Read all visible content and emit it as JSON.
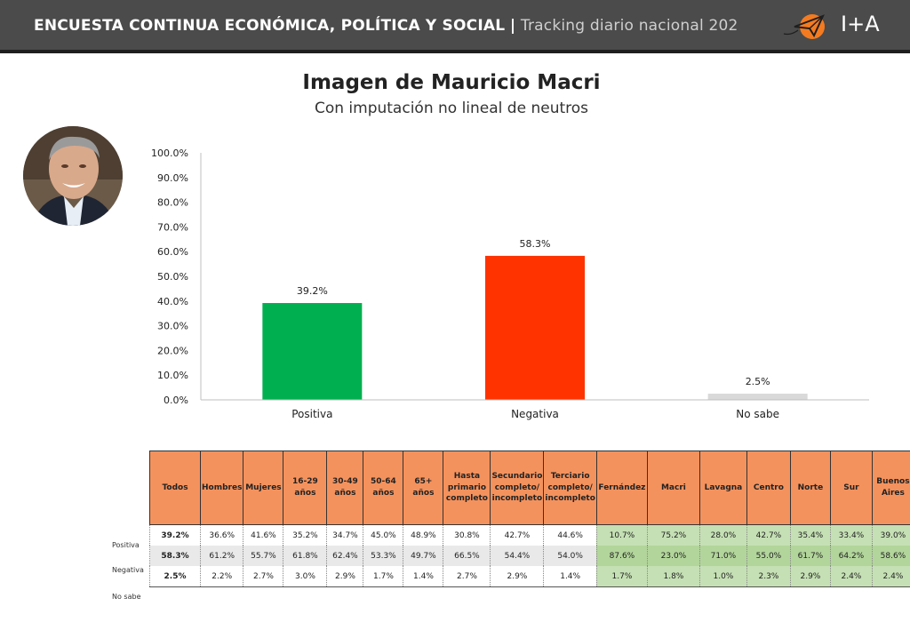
{
  "header": {
    "title": "ENCUESTA CONTINUA ECONÓMICA, POLÍTICA Y SOCIAL",
    "separator": "|",
    "subtitle": "Tracking diario nacional 202",
    "logo_text": "I+A"
  },
  "colors": {
    "header_bg": "#4b4b4b",
    "positiva": "#00b050",
    "negativa": "#ff3300",
    "no_sabe": "#d9d9d9",
    "table_header": "#f4925d",
    "table_green": "#c5e0b4"
  },
  "chart_data": {
    "type": "bar",
    "title": "Imagen de Mauricio Macri",
    "subtitle": "Con imputación no lineal de neutros",
    "categories": [
      "Positiva",
      "Negativa",
      "No sabe"
    ],
    "values": [
      39.2,
      58.3,
      2.5
    ],
    "value_labels": [
      "39.2%",
      "58.3%",
      "2.5%"
    ],
    "bar_colors": [
      "#00b050",
      "#ff3300",
      "#d9d9d9"
    ],
    "ylim": [
      0,
      100
    ],
    "y_ticks": [
      "0.0%",
      "10.0%",
      "20.0%",
      "30.0%",
      "40.0%",
      "50.0%",
      "60.0%",
      "70.0%",
      "80.0%",
      "90.0%",
      "100.0%"
    ],
    "grid": false,
    "legend": "none"
  },
  "table": {
    "columns": [
      [
        "Todos"
      ],
      [
        "Hombres"
      ],
      [
        "Mujeres"
      ],
      [
        "16-29",
        "años"
      ],
      [
        "30-49",
        "años"
      ],
      [
        "50-64",
        "años"
      ],
      [
        "65+ años"
      ],
      [
        "Hasta",
        "primario",
        "completo"
      ],
      [
        "Secundario",
        "completo/",
        "incompleto"
      ],
      [
        "Terciario",
        "completo/",
        "incompleto"
      ],
      [
        "Fernández"
      ],
      [
        "Macri"
      ],
      [
        "Lavagna"
      ],
      [
        "Centro"
      ],
      [
        "Norte"
      ],
      [
        "Sur"
      ],
      [
        "Buenos",
        "Aires"
      ]
    ],
    "rows": [
      {
        "label": "Positiva",
        "values": [
          "39.2%",
          "36.6%",
          "41.6%",
          "35.2%",
          "34.7%",
          "45.0%",
          "48.9%",
          "30.8%",
          "42.7%",
          "44.6%",
          "10.7%",
          "75.2%",
          "28.0%",
          "42.7%",
          "35.4%",
          "33.4%",
          "39.0%"
        ]
      },
      {
        "label": "Negativa",
        "values": [
          "58.3%",
          "61.2%",
          "55.7%",
          "61.8%",
          "62.4%",
          "53.3%",
          "49.7%",
          "66.5%",
          "54.4%",
          "54.0%",
          "87.6%",
          "23.0%",
          "71.0%",
          "55.0%",
          "61.7%",
          "64.2%",
          "58.6%"
        ]
      },
      {
        "label": "No sabe",
        "values": [
          "2.5%",
          "2.2%",
          "2.7%",
          "3.0%",
          "2.9%",
          "1.7%",
          "1.4%",
          "2.7%",
          "2.9%",
          "1.4%",
          "1.7%",
          "1.8%",
          "1.0%",
          "2.3%",
          "2.9%",
          "2.4%",
          "2.4%"
        ]
      }
    ]
  }
}
